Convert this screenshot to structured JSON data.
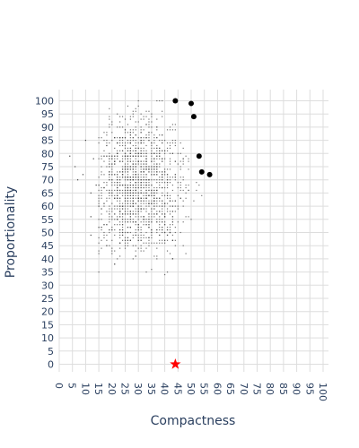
{
  "chart_data": {
    "type": "scatter",
    "xlabel": "Compactness",
    "ylabel": "Proportionality",
    "xlim": [
      0,
      100
    ],
    "ylim": [
      0,
      100
    ],
    "x_ticks": [
      0,
      5,
      10,
      15,
      20,
      25,
      30,
      35,
      40,
      45,
      50,
      55,
      60,
      65,
      70,
      75,
      80,
      85,
      90,
      95,
      100
    ],
    "y_ticks": [
      0,
      5,
      10,
      15,
      20,
      25,
      30,
      35,
      40,
      45,
      50,
      55,
      60,
      65,
      70,
      75,
      80,
      85,
      90,
      95,
      100
    ],
    "x_tick_labels": [
      "0",
      "5",
      "10",
      "15",
      "20",
      "25",
      "30",
      "35",
      "40",
      "45",
      "50",
      "55",
      "60",
      "65",
      "70",
      "75",
      "80",
      "85",
      "90",
      "95",
      "100"
    ],
    "y_tick_labels": [
      "0",
      "5",
      "10",
      "15",
      "20",
      "25",
      "30",
      "35",
      "40",
      "45",
      "50",
      "55",
      "60",
      "65",
      "70",
      "75",
      "80",
      "85",
      "90",
      "95",
      "100"
    ],
    "grid": true,
    "colors": {
      "cloud": "#444444",
      "frontier": "#000000",
      "star": "#ff0000",
      "grid": "#dddddd",
      "text": "#2a3f5f"
    },
    "cloud": {
      "description_only": "dense cloud of small gray markers",
      "x_range": [
        4,
        57
      ],
      "y_range": [
        32,
        100
      ],
      "center": [
        30,
        68
      ]
    },
    "frontier_points": [
      {
        "x": 44,
        "y": 100
      },
      {
        "x": 50,
        "y": 99
      },
      {
        "x": 51,
        "y": 94
      },
      {
        "x": 53,
        "y": 79
      },
      {
        "x": 54,
        "y": 73
      },
      {
        "x": 57,
        "y": 72
      }
    ],
    "star_point": {
      "x": 44,
      "y": 0
    }
  }
}
